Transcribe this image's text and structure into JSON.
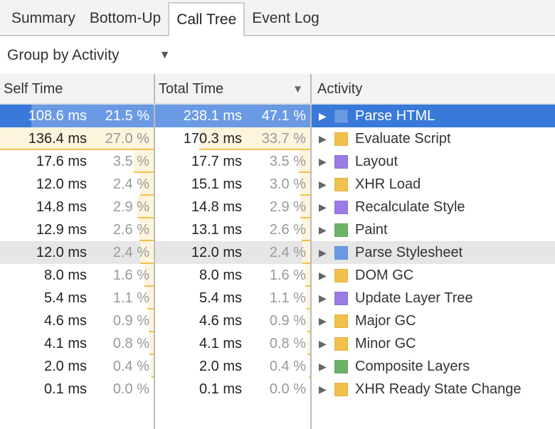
{
  "tabs": [
    {
      "label": "Summary"
    },
    {
      "label": "Bottom-Up"
    },
    {
      "label": "Call Tree",
      "active": true
    },
    {
      "label": "Event Log"
    }
  ],
  "toolbar": {
    "group_by": "Group by Activity"
  },
  "columns": {
    "self": "Self Time",
    "total": "Total Time",
    "activity": "Activity",
    "sorted_by": "Total Time",
    "sort_direction": "descending"
  },
  "colors": {
    "loading": "#6a9ae3",
    "scripting": "#f2c14b",
    "rendering": "#9b7be6",
    "painting": "#6cb36a",
    "selection": "#3879d9"
  },
  "rows": [
    {
      "self": "108.6 ms",
      "self_pct": "21.5 %",
      "self_val": 108.6,
      "total": "238.1 ms",
      "total_pct": "47.1 %",
      "total_val": 238.1,
      "activity": "Parse HTML",
      "color": "#6a9ae3",
      "selected": true
    },
    {
      "self": "136.4 ms",
      "self_pct": "27.0 %",
      "self_val": 136.4,
      "total": "170.3 ms",
      "total_pct": "33.7 %",
      "total_val": 170.3,
      "activity": "Evaluate Script",
      "color": "#f2c14b"
    },
    {
      "self": "17.6 ms",
      "self_pct": "3.5 %",
      "self_val": 17.6,
      "total": "17.7 ms",
      "total_pct": "3.5 %",
      "total_val": 17.7,
      "activity": "Layout",
      "color": "#9b7be6"
    },
    {
      "self": "12.0 ms",
      "self_pct": "2.4 %",
      "self_val": 12.0,
      "total": "15.1 ms",
      "total_pct": "3.0 %",
      "total_val": 15.1,
      "activity": "XHR Load",
      "color": "#f2c14b"
    },
    {
      "self": "14.8 ms",
      "self_pct": "2.9 %",
      "self_val": 14.8,
      "total": "14.8 ms",
      "total_pct": "2.9 %",
      "total_val": 14.8,
      "activity": "Recalculate Style",
      "color": "#9b7be6"
    },
    {
      "self": "12.9 ms",
      "self_pct": "2.6 %",
      "self_val": 12.9,
      "total": "13.1 ms",
      "total_pct": "2.6 %",
      "total_val": 13.1,
      "activity": "Paint",
      "color": "#6cb36a"
    },
    {
      "self": "12.0 ms",
      "self_pct": "2.4 %",
      "self_val": 12.0,
      "total": "12.0 ms",
      "total_pct": "2.4 %",
      "total_val": 12.0,
      "activity": "Parse Stylesheet",
      "color": "#6a9ae3",
      "hovered": true
    },
    {
      "self": "8.0 ms",
      "self_pct": "1.6 %",
      "self_val": 8.0,
      "total": "8.0 ms",
      "total_pct": "1.6 %",
      "total_val": 8.0,
      "activity": "DOM GC",
      "color": "#f2c14b"
    },
    {
      "self": "5.4 ms",
      "self_pct": "1.1 %",
      "self_val": 5.4,
      "total": "5.4 ms",
      "total_pct": "1.1 %",
      "total_val": 5.4,
      "activity": "Update Layer Tree",
      "color": "#9b7be6"
    },
    {
      "self": "4.6 ms",
      "self_pct": "0.9 %",
      "self_val": 4.6,
      "total": "4.6 ms",
      "total_pct": "0.9 %",
      "total_val": 4.6,
      "activity": "Major GC",
      "color": "#f2c14b"
    },
    {
      "self": "4.1 ms",
      "self_pct": "0.8 %",
      "self_val": 4.1,
      "total": "4.1 ms",
      "total_pct": "0.8 %",
      "total_val": 4.1,
      "activity": "Minor GC",
      "color": "#f2c14b"
    },
    {
      "self": "2.0 ms",
      "self_pct": "0.4 %",
      "self_val": 2.0,
      "total": "2.0 ms",
      "total_pct": "0.4 %",
      "total_val": 2.0,
      "activity": "Composite Layers",
      "color": "#6cb36a"
    },
    {
      "self": "0.1 ms",
      "self_pct": "0.0 %",
      "self_val": 0.1,
      "total": "0.1 ms",
      "total_pct": "0.0 %",
      "total_val": 0.1,
      "activity": "XHR Ready State Change",
      "color": "#f2c14b"
    }
  ]
}
